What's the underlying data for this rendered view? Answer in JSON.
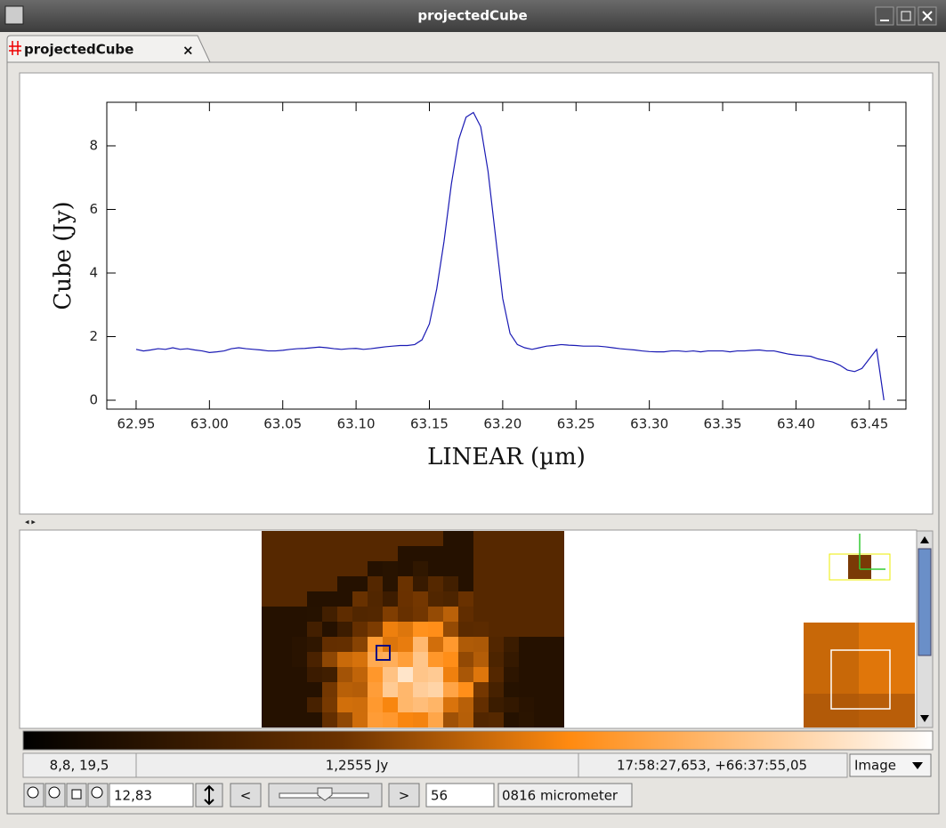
{
  "window": {
    "title": "projectedCube"
  },
  "tab": {
    "label": "projectedCube",
    "close": "×"
  },
  "chart_data": {
    "type": "line",
    "x_label": "LINEAR (µm)",
    "y_label": "Cube (Jy)",
    "x": [
      62.95,
      62.955,
      62.96,
      62.965,
      62.97,
      62.975,
      62.98,
      62.985,
      62.99,
      62.995,
      63.0,
      63.005,
      63.01,
      63.015,
      63.02,
      63.025,
      63.03,
      63.035,
      63.04,
      63.045,
      63.05,
      63.055,
      63.06,
      63.065,
      63.07,
      63.075,
      63.08,
      63.085,
      63.09,
      63.095,
      63.1,
      63.105,
      63.11,
      63.115,
      63.12,
      63.125,
      63.13,
      63.135,
      63.14,
      63.145,
      63.15,
      63.155,
      63.16,
      63.165,
      63.17,
      63.175,
      63.18,
      63.185,
      63.19,
      63.195,
      63.2,
      63.205,
      63.21,
      63.215,
      63.22,
      63.225,
      63.23,
      63.235,
      63.24,
      63.245,
      63.25,
      63.255,
      63.26,
      63.265,
      63.27,
      63.275,
      63.28,
      63.285,
      63.29,
      63.295,
      63.3,
      63.305,
      63.31,
      63.315,
      63.32,
      63.325,
      63.33,
      63.335,
      63.34,
      63.345,
      63.35,
      63.355,
      63.36,
      63.365,
      63.37,
      63.375,
      63.38,
      63.385,
      63.39,
      63.395,
      63.4,
      63.405,
      63.41,
      63.415,
      63.42,
      63.425,
      63.43,
      63.435,
      63.44,
      63.445,
      63.45,
      63.455,
      63.46
    ],
    "values": [
      1.6,
      1.55,
      1.58,
      1.62,
      1.6,
      1.65,
      1.6,
      1.62,
      1.58,
      1.55,
      1.5,
      1.52,
      1.55,
      1.62,
      1.65,
      1.62,
      1.6,
      1.58,
      1.55,
      1.55,
      1.57,
      1.6,
      1.62,
      1.63,
      1.65,
      1.67,
      1.65,
      1.62,
      1.6,
      1.62,
      1.63,
      1.6,
      1.62,
      1.65,
      1.68,
      1.7,
      1.72,
      1.72,
      1.75,
      1.9,
      2.4,
      3.5,
      5.0,
      6.8,
      8.2,
      8.9,
      9.05,
      8.6,
      7.2,
      5.2,
      3.2,
      2.1,
      1.75,
      1.65,
      1.6,
      1.65,
      1.7,
      1.72,
      1.75,
      1.73,
      1.72,
      1.7,
      1.7,
      1.7,
      1.68,
      1.65,
      1.62,
      1.6,
      1.58,
      1.55,
      1.53,
      1.52,
      1.52,
      1.55,
      1.55,
      1.53,
      1.55,
      1.52,
      1.55,
      1.55,
      1.55,
      1.52,
      1.55,
      1.55,
      1.57,
      1.58,
      1.55,
      1.55,
      1.5,
      1.45,
      1.42,
      1.4,
      1.38,
      1.3,
      1.25,
      1.2,
      1.1,
      0.95,
      0.9,
      1.0,
      1.3,
      1.6,
      0.0
    ],
    "color": "#1a1ab4",
    "xlim": [
      62.93,
      63.475
    ],
    "ylim": [
      -0.28,
      9.37
    ],
    "xticks": [
      62.95,
      {
        "value": 63.0,
        "label": "63.00"
      },
      63.05,
      {
        "value": 63.1,
        "label": "63.10"
      },
      63.15,
      {
        "value": 63.2,
        "label": "63.20"
      },
      63.25,
      {
        "value": 63.3,
        "label": "63.30"
      },
      63.35,
      {
        "value": 63.4,
        "label": "63.40"
      },
      63.45
    ],
    "yticks": [
      0,
      2,
      4,
      6,
      8
    ]
  },
  "status": {
    "position": "8,8, 19,5",
    "value": "1,2555 Jy",
    "coords": "17:58:27,653, +66:37:55,05",
    "mode": "Image"
  },
  "toolbar": {
    "zoom": "12,83",
    "prev": "<",
    "next": ">",
    "plane": "56",
    "wavelength": "0816 micrometer"
  }
}
